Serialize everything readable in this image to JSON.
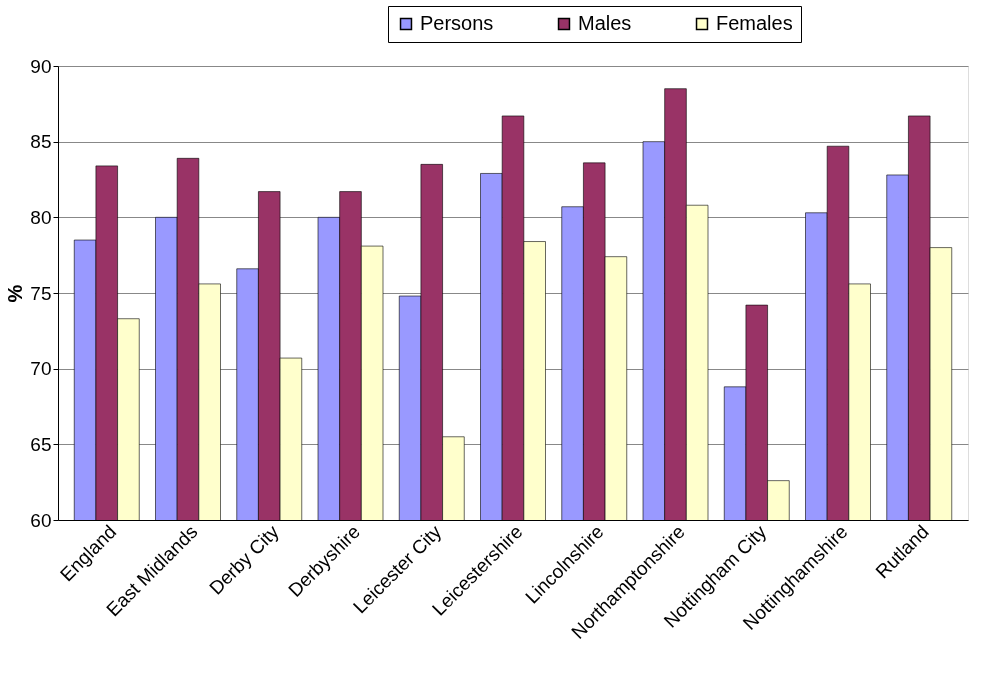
{
  "chart_data": {
    "type": "bar",
    "ylabel": "%",
    "categories": [
      "England",
      "East Midlands",
      "Derby City",
      "Derbyshire",
      "Leicester City",
      "Leicestershire",
      "Lincolnshire",
      "Northamptonshire",
      "Nottingham City",
      "Nottinghamshire",
      "Rutland"
    ],
    "series": [
      {
        "name": "Persons",
        "color": "#9999ff",
        "values": [
          78.5,
          80.0,
          76.6,
          80.0,
          74.8,
          82.9,
          80.7,
          85.0,
          68.8,
          80.3,
          82.8
        ]
      },
      {
        "name": "Males",
        "color": "#993366",
        "values": [
          83.4,
          83.9,
          81.7,
          81.7,
          83.5,
          86.7,
          83.6,
          88.5,
          74.2,
          84.7,
          86.7
        ]
      },
      {
        "name": "Females",
        "color": "#ffffcc",
        "values": [
          73.3,
          75.6,
          70.7,
          78.1,
          65.5,
          78.4,
          77.4,
          80.8,
          62.6,
          75.6,
          78.0
        ]
      }
    ],
    "ylim": [
      60,
      90
    ],
    "yticks": [
      60,
      65,
      70,
      75,
      80,
      85,
      90
    ],
    "grid": "y",
    "legend": "top right"
  }
}
